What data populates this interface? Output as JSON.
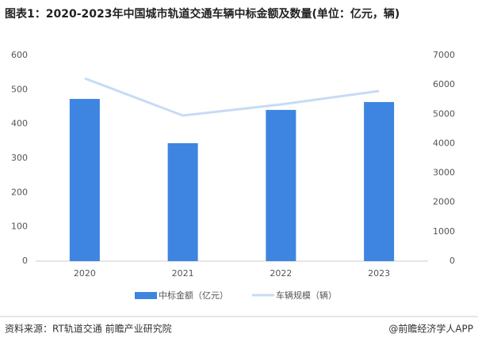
{
  "chart_data": {
    "type": "bar",
    "title": "图表1：2020-2023年中国城市轨道交通车辆中标金额及数量(单位：亿元，辆)",
    "categories": [
      "2020",
      "2021",
      "2022",
      "2023"
    ],
    "series": [
      {
        "name": "中标金额（亿元）",
        "type": "bar",
        "color": "#3d85e0",
        "values": [
          473,
          344,
          441,
          464
        ]
      },
      {
        "name": "车辆规模（辆）",
        "type": "line",
        "axis": "y2",
        "color": "#c5dcf5",
        "values": [
          6220,
          4954,
          5331,
          5789
        ]
      }
    ],
    "ylim": [
      0,
      600
    ],
    "yticks": [
      0,
      100,
      200,
      300,
      400,
      500,
      600
    ],
    "y2lim": [
      0,
      7000
    ],
    "y2ticks": [
      0,
      1000,
      2000,
      3000,
      4000,
      5000,
      6000,
      7000
    ],
    "grid": false,
    "legend": "bottom",
    "source": "资料来源：RT轨道交通 前瞻产业研究院",
    "credit": "@前瞻经济学人APP"
  }
}
